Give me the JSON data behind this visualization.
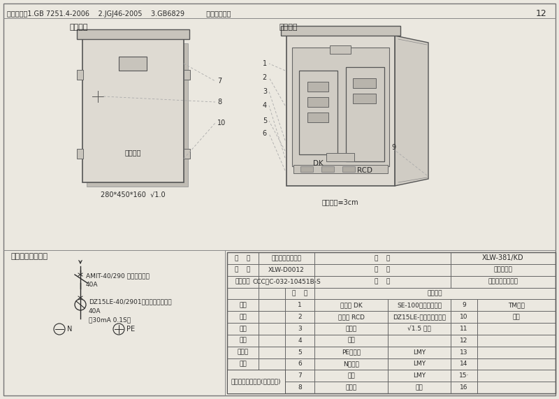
{
  "page_num": "12",
  "header_text": "执行标准：1.GB 7251.4-2006    2.JGJ46-2005    3.GB6829          壳体颜色：黄",
  "paper_color": "#ebe8e0",
  "left_diagram_label": "外型图：",
  "right_diagram_label": "装配图：",
  "left_box_dims": "280*450*160  √1.0",
  "spacing_note": "元件间距≡3cm",
  "circuit_label": "电器连接原理图：",
  "circuit_lines": [
    "AMIT-40/290 （透明空开）",
    "40A",
    "DZ15LE-40/2901（透明漏电开关）",
    "40A",
    "（30mA 0.1S）"
  ],
  "company_text": "哈尔滨市龙瑞电气(成套设备)",
  "table_header_data": [
    [
      "名    称",
      "建筑施工用配电箱",
      "型    号",
      "XLW-381/KD"
    ],
    [
      "图    号",
      "XLW-D0012",
      "规    格",
      "照明开关箱"
    ],
    [
      "试验报告",
      "CCC：C-032-10451B-S",
      "用    途",
      "施工现场照明配电"
    ]
  ],
  "table_rows": [
    [
      "设计",
      "1",
      "断路器 DK",
      "SE-100系列透明开关",
      "9",
      "TM连接"
    ],
    [
      "制图",
      "2",
      "断路器 RCD",
      "DZ15LE-透明系列漏电开",
      "10",
      "挂耳"
    ],
    [
      "校核",
      "3",
      "安装板",
      "√1.5 折边",
      "11",
      ""
    ],
    [
      "审核",
      "4",
      "线夹",
      "",
      "12",
      ""
    ],
    [
      "标准化",
      "5",
      "PE线端子",
      "LMY",
      "13",
      ""
    ],
    [
      "日期",
      "6",
      "N线端子",
      "LMY",
      "14",
      ""
    ],
    [
      "",
      "7",
      "标牌",
      "LMY",
      "15·",
      ""
    ],
    [
      "",
      "8",
      "压把锁",
      "防雨",
      "16",
      ""
    ]
  ],
  "gray_line": "#888888",
  "dark": "#2a2a2a",
  "mid": "#555555",
  "box_fill": "#dedad2",
  "box_dark": "#c8c4bc",
  "box_shadow": "#c0bcb4",
  "inner_fill": "#d0ccc4"
}
